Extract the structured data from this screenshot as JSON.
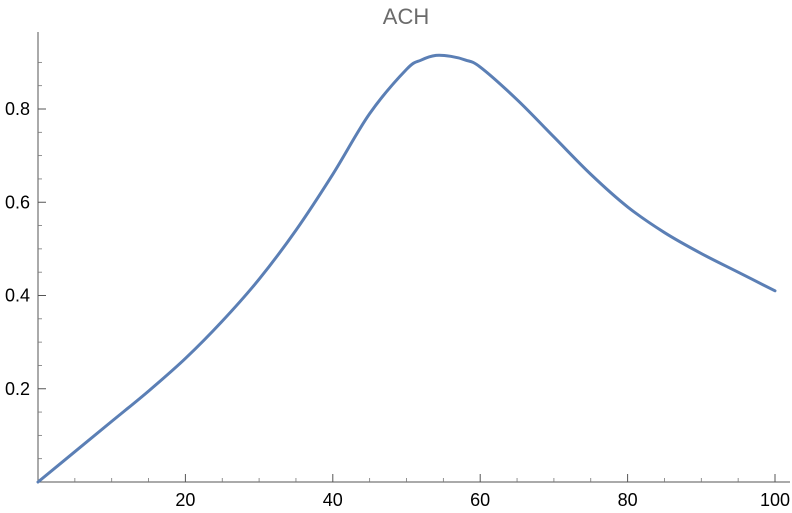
{
  "chart_data": {
    "type": "line",
    "title": "ACH",
    "xlabel": "",
    "ylabel": "",
    "xlim": [
      0,
      100
    ],
    "ylim": [
      0,
      0.95
    ],
    "grid": false,
    "xticks": [
      20,
      40,
      60,
      80,
      100
    ],
    "xtick_labels": [
      "20",
      "40",
      "60",
      "80",
      "100"
    ],
    "yticks": [
      0.2,
      0.4,
      0.6,
      0.8
    ],
    "ytick_labels": [
      "0.2",
      "0.4",
      "0.6",
      "0.8"
    ],
    "series": [
      {
        "color": "#5b7fb5",
        "x": [
          0,
          5,
          10,
          15,
          20,
          25,
          30,
          35,
          40,
          45,
          50,
          52,
          54,
          56,
          58,
          60,
          65,
          70,
          75,
          80,
          85,
          90,
          95,
          100
        ],
        "y": [
          0,
          0.065,
          0.13,
          0.195,
          0.265,
          0.345,
          0.435,
          0.54,
          0.66,
          0.79,
          0.885,
          0.905,
          0.915,
          0.913,
          0.905,
          0.89,
          0.82,
          0.74,
          0.66,
          0.59,
          0.535,
          0.49,
          0.45,
          0.41
        ]
      }
    ]
  }
}
